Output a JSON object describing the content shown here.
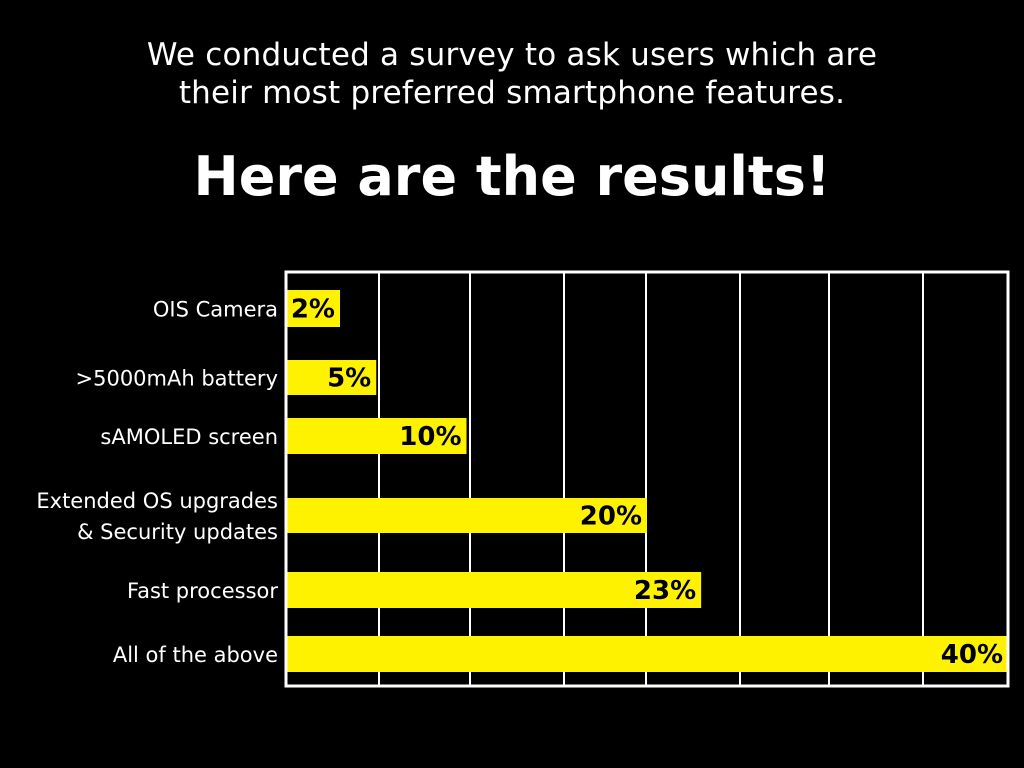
{
  "intro": {
    "line1": "We conducted a survey to ask users which are",
    "line2": "their most preferred smartphone features."
  },
  "headline": "Here are the results!",
  "colors": {
    "background": "#000000",
    "bar": "#fff200",
    "frame": "#ffffff",
    "label": "#ffffff",
    "value_text": "#000000"
  },
  "chart_data": {
    "type": "bar",
    "orientation": "horizontal",
    "title": "",
    "xlabel": "",
    "ylabel": "",
    "xlim": [
      0,
      40
    ],
    "grid": true,
    "legend": "none",
    "categories": [
      [
        "OIS Camera"
      ],
      [
        ">5000mAh battery"
      ],
      [
        "sAMOLED screen"
      ],
      [
        "Extended OS upgrades",
        "& Security updates"
      ],
      [
        "Fast processor"
      ],
      [
        "All of the above"
      ]
    ],
    "values": [
      2,
      5,
      10,
      20,
      23,
      40
    ],
    "value_labels": [
      "2%",
      "5%",
      "10%",
      "20%",
      "23%",
      "40%"
    ]
  }
}
